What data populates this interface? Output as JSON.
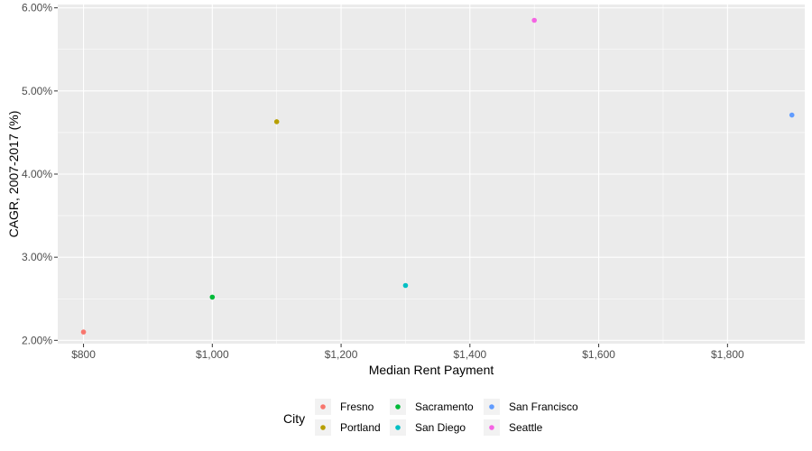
{
  "chart_data": {
    "type": "scatter",
    "xlabel": "Median Rent Payment",
    "ylabel": "CAGR, 2007-2017 (%)",
    "xlim": [
      760,
      1920
    ],
    "ylim": [
      1.96,
      6.04
    ],
    "x_ticks": [
      800,
      1000,
      1200,
      1400,
      1600,
      1800
    ],
    "x_tick_labels": [
      "$800",
      "$1,000",
      "$1,200",
      "$1,400",
      "$1,600",
      "$1,800"
    ],
    "y_ticks": [
      2,
      3,
      4,
      5,
      6
    ],
    "y_tick_labels": [
      "2.00%",
      "3.00%",
      "4.00%",
      "5.00%",
      "6.00%"
    ],
    "grid": true,
    "legend": {
      "title": "City",
      "position": "bottom"
    },
    "series": [
      {
        "name": "Fresno",
        "color": "#F8766D",
        "x": [
          800
        ],
        "y": [
          2.1
        ]
      },
      {
        "name": "Portland",
        "color": "#B79F00",
        "x": [
          1100
        ],
        "y": [
          4.63
        ]
      },
      {
        "name": "Sacramento",
        "color": "#00BA38",
        "x": [
          1000
        ],
        "y": [
          2.52
        ]
      },
      {
        "name": "San Diego",
        "color": "#00BFC4",
        "x": [
          1300
        ],
        "y": [
          2.66
        ]
      },
      {
        "name": "San Francisco",
        "color": "#619CFF",
        "x": [
          1900
        ],
        "y": [
          4.71
        ]
      },
      {
        "name": "Seattle",
        "color": "#F564E3",
        "x": [
          1500
        ],
        "y": [
          5.85
        ]
      }
    ]
  }
}
